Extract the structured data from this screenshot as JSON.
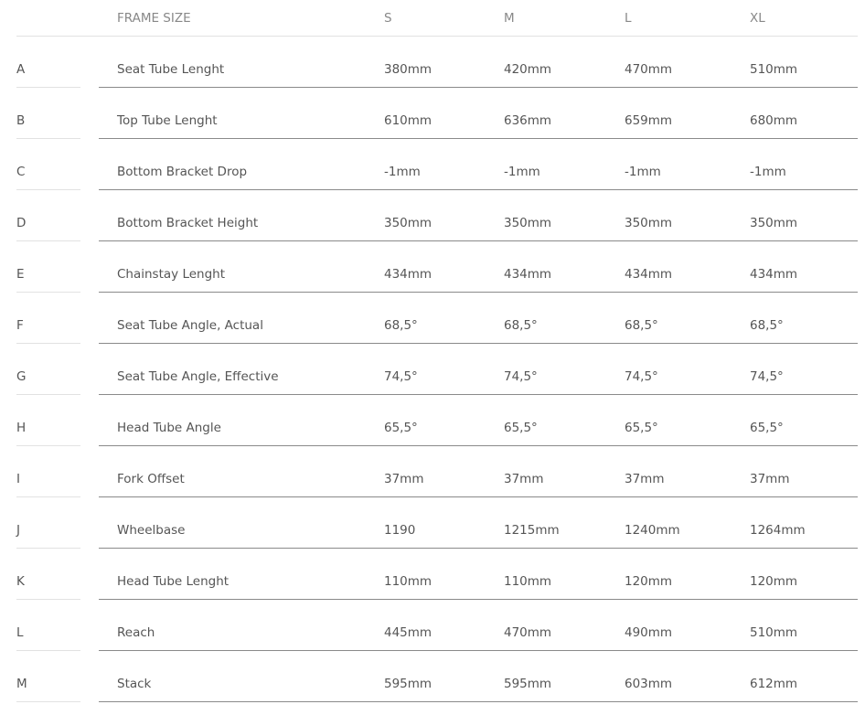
{
  "header": {
    "label": "FRAME SIZE",
    "sizes": [
      "S",
      "M",
      "L",
      "XL"
    ]
  },
  "rows": [
    {
      "letter": "A",
      "label": "Seat Tube Lenght",
      "values": [
        "380mm",
        "420mm",
        "470mm",
        "510mm"
      ]
    },
    {
      "letter": "B",
      "label": "Top Tube Lenght",
      "values": [
        "610mm",
        "636mm",
        "659mm",
        "680mm"
      ]
    },
    {
      "letter": "C",
      "label": "Bottom Bracket Drop",
      "values": [
        "-1mm",
        "-1mm",
        "-1mm",
        "-1mm"
      ]
    },
    {
      "letter": "D",
      "label": "Bottom Bracket Height",
      "values": [
        "350mm",
        "350mm",
        "350mm",
        "350mm"
      ]
    },
    {
      "letter": "E",
      "label": "Chainstay Lenght",
      "values": [
        "434mm",
        "434mm",
        "434mm",
        "434mm"
      ]
    },
    {
      "letter": "F",
      "label": "Seat Tube Angle, Actual",
      "values": [
        "68,5°",
        "68,5°",
        "68,5°",
        "68,5°"
      ]
    },
    {
      "letter": "G",
      "label": "Seat Tube Angle, Effective",
      "values": [
        "74,5°",
        "74,5°",
        "74,5°",
        "74,5°"
      ]
    },
    {
      "letter": "H",
      "label": "Head Tube Angle",
      "values": [
        "65,5°",
        "65,5°",
        "65,5°",
        "65,5°"
      ]
    },
    {
      "letter": "I",
      "label": "Fork Offset",
      "values": [
        "37mm",
        "37mm",
        "37mm",
        "37mm"
      ]
    },
    {
      "letter": "J",
      "label": "Wheelbase",
      "values": [
        "1190",
        "1215mm",
        "1240mm",
        "1264mm"
      ]
    },
    {
      "letter": "K",
      "label": "Head Tube Lenght",
      "values": [
        "110mm",
        "110mm",
        "120mm",
        "120mm"
      ]
    },
    {
      "letter": "L",
      "label": "Reach",
      "values": [
        "445mm",
        "470mm",
        "490mm",
        "510mm"
      ]
    },
    {
      "letter": "M",
      "label": "Stack",
      "values": [
        "595mm",
        "595mm",
        "603mm",
        "612mm"
      ]
    }
  ]
}
